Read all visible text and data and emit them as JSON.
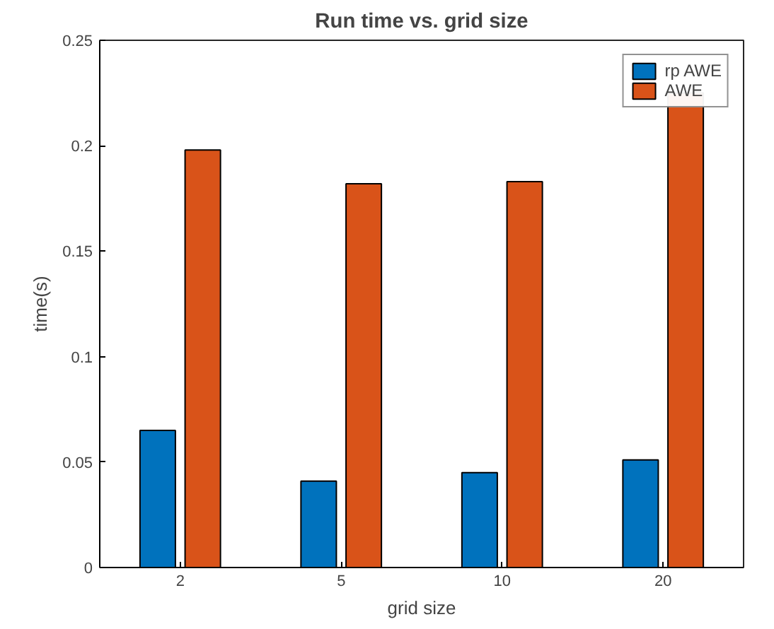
{
  "chart_data": {
    "type": "bar",
    "title": "Run time vs. grid size",
    "xlabel": "grid size",
    "ylabel": "time(s)",
    "categories": [
      "2",
      "5",
      "10",
      "20"
    ],
    "series": [
      {
        "name": "rp AWE",
        "color": "#0072bd",
        "values": [
          0.065,
          0.041,
          0.045,
          0.051
        ]
      },
      {
        "name": "AWE",
        "color": "#d95319",
        "values": [
          0.198,
          0.182,
          0.183,
          0.225
        ]
      }
    ],
    "ylim": [
      0,
      0.25
    ],
    "yticks": [
      0,
      0.05,
      0.1,
      0.15,
      0.2,
      0.25
    ],
    "grid": false,
    "legend": "top right"
  }
}
